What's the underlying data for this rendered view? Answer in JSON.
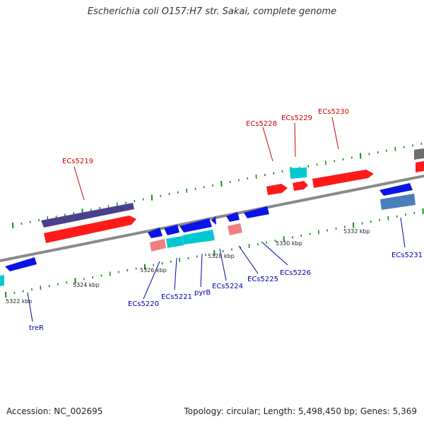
{
  "header": {
    "title": "Escherichia coli O157:H7 str. Sakai, complete genome"
  },
  "footer": {
    "accession": "Accession: NC_002695",
    "summary": "Topology: circular; Length: 5,498,450 bp; Genes: 5,369"
  },
  "scale": {
    "unit": "kbp",
    "labels": [
      "5322 kbp",
      "5324 kbp",
      "5326 kbp",
      "5328 kbp",
      "5330 kbp",
      "5332 kbp"
    ]
  },
  "colors": {
    "backbone": "#8a8a8a",
    "forward_cds": "#ff0000",
    "reverse_cds": "#0000e6",
    "label_forward": "#cc0000",
    "label_reverse": "#0000aa",
    "ticks": "#1a8a1a",
    "cyan": "#00c8d2",
    "pink": "#f08080",
    "purple": "#4a3f8f",
    "steel": "#4a7eb8",
    "gray": "#6e6e6e"
  },
  "gene_labels": {
    "forward": [
      "ECs5219",
      "ECs5228",
      "ECs5229",
      "ECs5230"
    ],
    "reverse": [
      "treR",
      "ECs5220",
      "ECs5221",
      "pyrB",
      "ECs5224",
      "ECs5225",
      "ECs5226",
      "ECs5231"
    ]
  }
}
